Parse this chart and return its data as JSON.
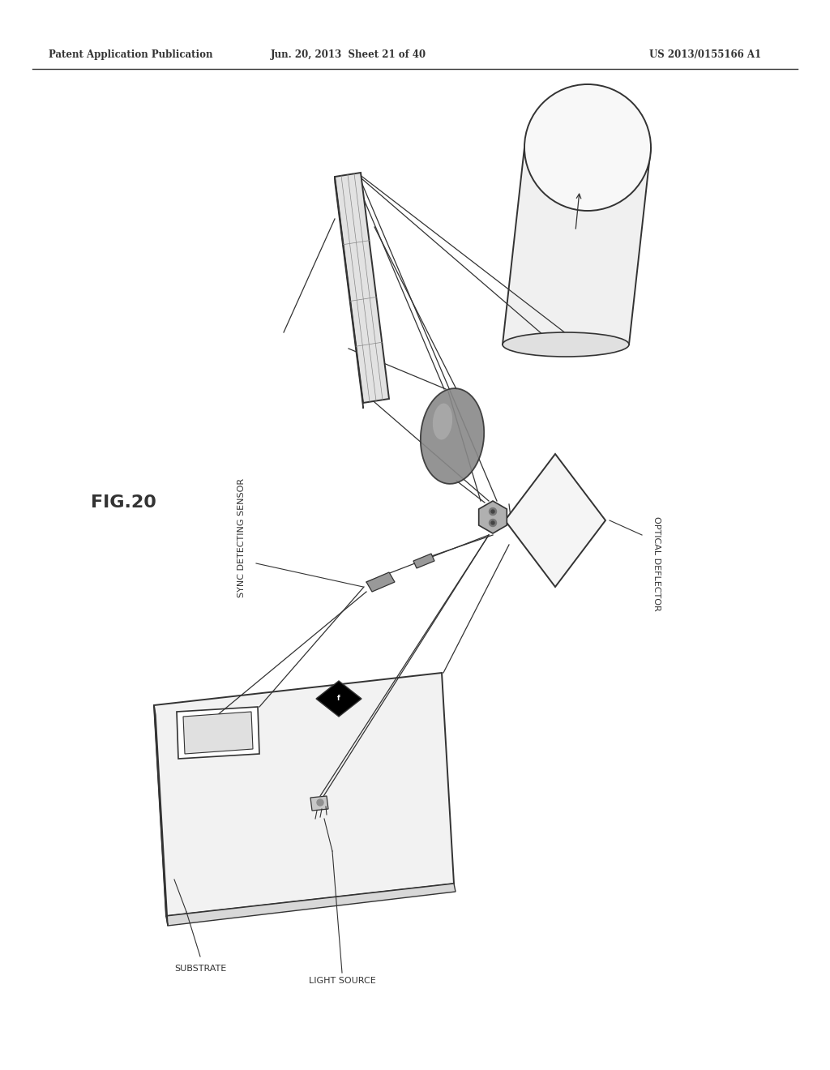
{
  "header_left": "Patent Application Publication",
  "header_center": "Jun. 20, 2013  Sheet 21 of 40",
  "header_right": "US 2013/0155166 A1",
  "fig_label": "FIG.20",
  "label_substrate": "SUBSTRATE",
  "label_light_source": "LIGHT SOURCE",
  "label_sync": "SYNC DETECTING SENSOR",
  "label_optical": "OPTICAL DEFLECTOR",
  "bg": "#ffffff",
  "lc": "#333333"
}
